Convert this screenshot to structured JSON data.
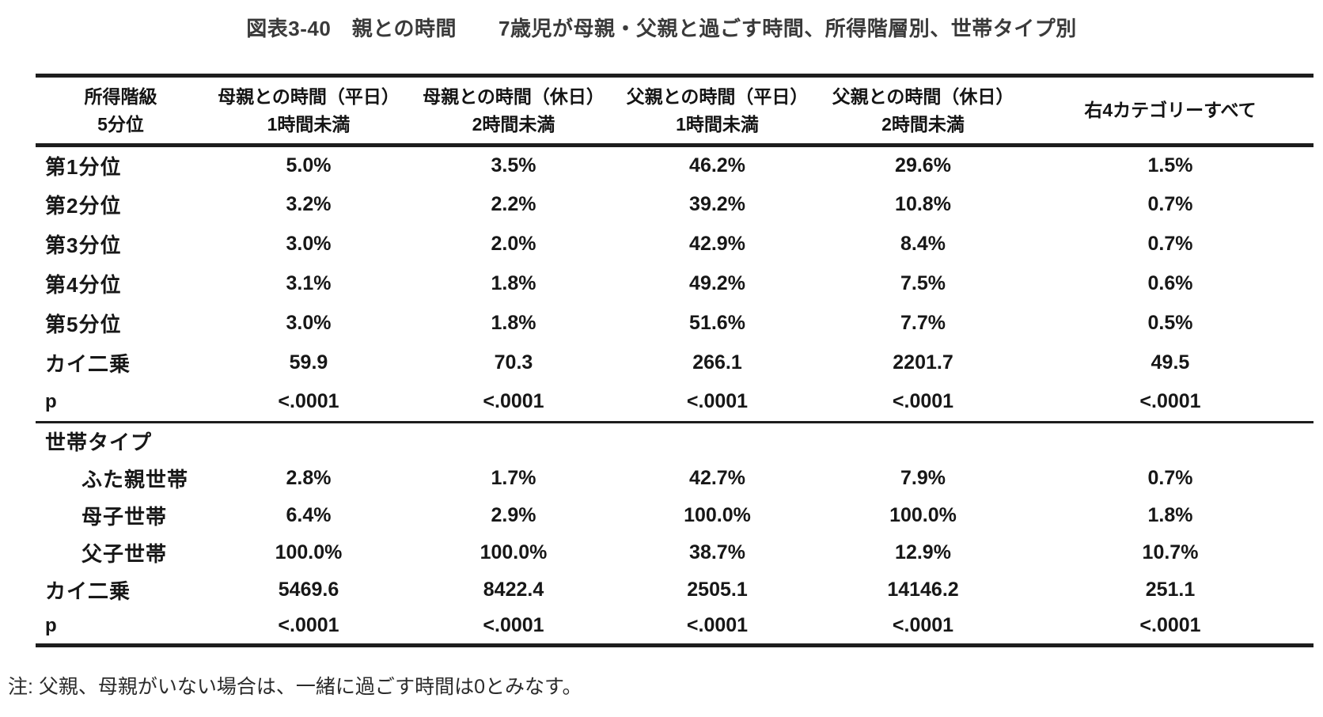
{
  "title": "図表3-40　親との時間　　7歳児が母親・父親と過ごす時間、所得階層別、世帯タイプ別",
  "table": {
    "columns": [
      {
        "line1": "所得階級",
        "line2": "5分位"
      },
      {
        "line1": "母親との時間（平日）",
        "line2": "1時間未満"
      },
      {
        "line1": "母親との時間（休日）",
        "line2": "2時間未満"
      },
      {
        "line1": "父親との時間（平日）",
        "line2": "1時間未満"
      },
      {
        "line1": "父親との時間（休日）",
        "line2": "2時間未満"
      },
      {
        "line1": "右4カテゴリーすべて",
        "line2": ""
      }
    ],
    "income_section": {
      "rows": [
        {
          "label": "第1分位",
          "values": [
            "5.0%",
            "3.5%",
            "46.2%",
            "29.6%",
            "1.5%"
          ]
        },
        {
          "label": "第2分位",
          "values": [
            "3.2%",
            "2.2%",
            "39.2%",
            "10.8%",
            "0.7%"
          ]
        },
        {
          "label": "第3分位",
          "values": [
            "3.0%",
            "2.0%",
            "42.9%",
            "8.4%",
            "0.7%"
          ]
        },
        {
          "label": "第4分位",
          "values": [
            "3.1%",
            "1.8%",
            "49.2%",
            "7.5%",
            "0.6%"
          ]
        },
        {
          "label": "第5分位",
          "values": [
            "3.0%",
            "1.8%",
            "51.6%",
            "7.7%",
            "0.5%"
          ]
        },
        {
          "label": "カイ二乗",
          "values": [
            "59.9",
            "70.3",
            "266.1",
            "2201.7",
            "49.5"
          ]
        },
        {
          "label": "p",
          "values": [
            "<.0001",
            "<.0001",
            "<.0001",
            "<.0001",
            "<.0001"
          ]
        }
      ]
    },
    "household_section": {
      "header": "世帯タイプ",
      "rows": [
        {
          "label": "ふた親世帯",
          "values": [
            "2.8%",
            "1.7%",
            "42.7%",
            "7.9%",
            "0.7%"
          ]
        },
        {
          "label": "母子世帯",
          "values": [
            "6.4%",
            "2.9%",
            "100.0%",
            "100.0%",
            "1.8%"
          ]
        },
        {
          "label": "父子世帯",
          "values": [
            "100.0%",
            "100.0%",
            "38.7%",
            "12.9%",
            "10.7%"
          ]
        },
        {
          "label": "カイ二乗",
          "values": [
            "5469.6",
            "8422.4",
            "2505.1",
            "14146.2",
            "251.1"
          ]
        },
        {
          "label": "p",
          "values": [
            "<.0001",
            "<.0001",
            "<.0001",
            "<.0001",
            "<.0001"
          ]
        }
      ]
    }
  },
  "note": "注: 父親、母親がいない場合は、一緒に過ごす時間は0とみなす。",
  "colors": {
    "text": "#171717",
    "rule": "#1d1d1d",
    "background": "#ffffff",
    "title_text": "#3a3a3a"
  }
}
